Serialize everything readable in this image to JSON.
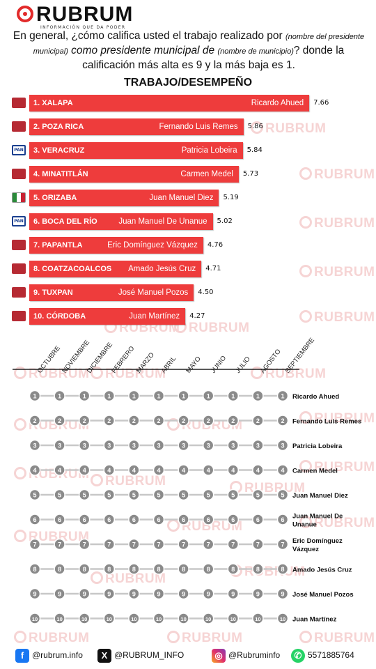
{
  "header": {
    "logo_text": "RUBRUM",
    "tagline": "INFORMACIÓN QUE DA PODER"
  },
  "question": {
    "p1": "En general, ¿cómo califica usted el trabajo realizado por ",
    "p2": "(nombre del presidente municipal)",
    "p3": " como presidente municipal de ",
    "p4": "(nombre de municipio)",
    "p5": "? donde la calificación más alta es 9 y la más baja es 1."
  },
  "watermark": "RUBRUM",
  "colors": {
    "bar": "#ee3c3c",
    "line": "#c8c8c8",
    "node": "#8a8a8a",
    "brand": "#e22b2b"
  },
  "chart_data": [
    {
      "type": "bar",
      "orientation": "horizontal",
      "title": "TRABAJO/DESEMPEÑO",
      "categories": [
        "1. XALAPA",
        "2. POZA RICA",
        "3. VERACRUZ",
        "4. MINATITLÁN",
        "5. ORIZABA",
        "6. BOCA DEL RÍO",
        "7. PAPANTLA",
        "8. COATZACOALCOS",
        "9. TUXPAN",
        "10. CÓRDOBA"
      ],
      "names": [
        "Ricardo Ahued",
        "Fernando Luis Remes",
        "Patricia Lobeira",
        "Carmen Medel",
        "Juan Manuel Diez",
        "Juan Manuel De Unanue",
        "Eric Domínguez Vázquez",
        "Amado Jesús Cruz",
        "José Manuel Pozos",
        "Juan Martínez"
      ],
      "parties": [
        "morena",
        "morena",
        "pan",
        "morena",
        "pri",
        "pan",
        "morena",
        "morena",
        "morena",
        "morena"
      ],
      "values": [
        7.66,
        5.86,
        5.84,
        5.73,
        5.19,
        5.02,
        4.76,
        4.71,
        4.5,
        4.27
      ],
      "value_labels": [
        "7.66",
        "5.86",
        "5.84",
        "5.73",
        "5.19",
        "5.02",
        "4.76",
        "4.71",
        "4.50",
        "4.27"
      ]
    },
    {
      "type": "bump",
      "months": [
        "OCTUBRE",
        "NOVIEMBRE",
        "DICIEMBRE",
        "FEBRERO",
        "MARZO",
        "ABRIL",
        "MAYO",
        "JUNIO",
        "JULIO",
        "AGOSTO",
        "SEPTIEMBRE"
      ],
      "ranks": [
        "1",
        "2",
        "3",
        "4",
        "5",
        "6",
        "7",
        "8",
        "9",
        "10"
      ],
      "series": [
        {
          "name": "Ricardo Ahued",
          "ranks": [
            1,
            1,
            1,
            1,
            1,
            1,
            1,
            1,
            1,
            1,
            1
          ]
        },
        {
          "name": "Fernando Luis Remes",
          "ranks": [
            2,
            2,
            2,
            2,
            2,
            2,
            2,
            2,
            2,
            2,
            2
          ]
        },
        {
          "name": "Patricia Lobeira",
          "ranks": [
            3,
            3,
            3,
            3,
            3,
            3,
            3,
            3,
            3,
            3,
            3
          ]
        },
        {
          "name": "Carmen Medel",
          "ranks": [
            4,
            4,
            4,
            4,
            4,
            4,
            4,
            4,
            4,
            4,
            4
          ]
        },
        {
          "name": "Juan Manuel Diez",
          "ranks": [
            5,
            5,
            5,
            5,
            5,
            5,
            5,
            5,
            5,
            5,
            5
          ]
        },
        {
          "name": "Juan Manuel De Unanue",
          "ranks": [
            6,
            6,
            6,
            6,
            6,
            6,
            6,
            6,
            6,
            6,
            6
          ]
        },
        {
          "name": "Eric Domínguez Vázquez",
          "ranks": [
            7,
            7,
            7,
            7,
            7,
            7,
            7,
            7,
            7,
            7,
            7
          ]
        },
        {
          "name": "Amado Jesús Cruz",
          "ranks": [
            8,
            8,
            8,
            8,
            8,
            8,
            8,
            8,
            8,
            8,
            8
          ]
        },
        {
          "name": "José Manuel Pozos",
          "ranks": [
            9,
            9,
            9,
            9,
            9,
            9,
            9,
            9,
            9,
            9,
            9
          ]
        },
        {
          "name": "Juan Martínez",
          "ranks": [
            10,
            10,
            10,
            10,
            10,
            10,
            10,
            10,
            10,
            10,
            10
          ]
        }
      ],
      "end_labels": [
        "Ricardo Ahued",
        "Fernando Luis Remes",
        "Patricia Lobeira",
        "Carmen Medel",
        "Juan Manuel Diez",
        "Juan Manuel De\nUnanue",
        "Eric Domínguez\nVázquez",
        "Amado Jesús Cruz",
        "José Manuel Pozos",
        "Juan Martínez"
      ]
    }
  ],
  "footer": {
    "facebook": "@rubrum.info",
    "x": "@RUBRUM_INFO",
    "instagram": "@Rubruminfo",
    "whatsapp": "5571885764"
  }
}
